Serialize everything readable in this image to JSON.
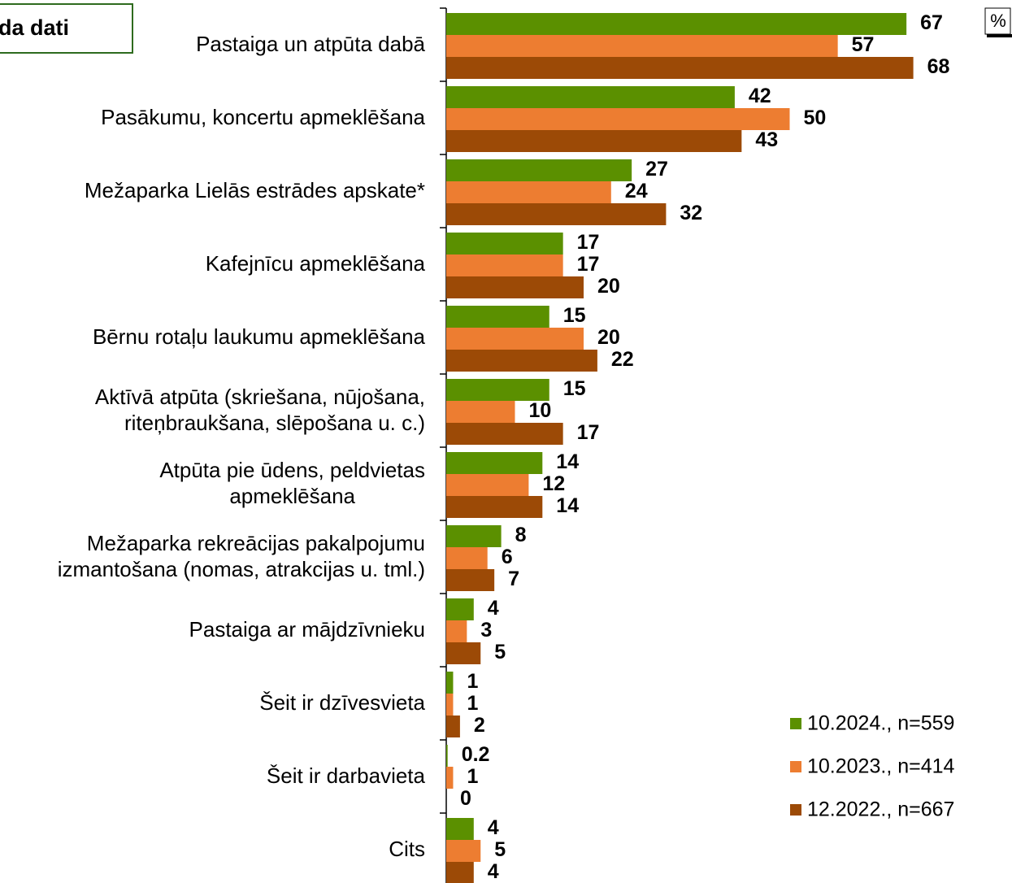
{
  "header": {
    "box_text": "da dati",
    "unit": "%"
  },
  "chart_data": {
    "type": "bar",
    "orientation": "horizontal",
    "categories": [
      [
        "Pastaiga un atpūta dabā"
      ],
      [
        "Pasākumu, koncertu apmeklēšana"
      ],
      [
        "Mežaparka Lielās estrādes apskate*"
      ],
      [
        "Kafejnīcu apmeklēšana"
      ],
      [
        "Bērnu rotaļu laukumu apmeklēšana"
      ],
      [
        "Aktīvā atpūta (skriešana, nūjošana,",
        "riteņbraukšana, slēpošana u. c.)"
      ],
      [
        "Atpūta pie ūdens, peldvietas",
        "apmeklēšana"
      ],
      [
        "Mežaparka rekreācijas pakalpojumu",
        "izmantošana (nomas, atrakcijas u. tml.)"
      ],
      [
        "Pastaiga ar mājdzīvnieku"
      ],
      [
        "Šeit ir dzīvesvieta"
      ],
      [
        "Šeit ir darbavieta"
      ],
      [
        "Cits"
      ]
    ],
    "series": [
      {
        "name": "10.2024., n=559",
        "color": "#5b9000",
        "values": [
          67,
          42,
          27,
          17,
          15,
          15,
          14,
          8,
          4,
          1,
          0.2,
          4
        ]
      },
      {
        "name": "10.2023., n=414",
        "color": "#ed7d31",
        "values": [
          57,
          50,
          24,
          17,
          20,
          10,
          12,
          6,
          3,
          1,
          1,
          5
        ]
      },
      {
        "name": "12.2022., n=667",
        "color": "#9c4a06",
        "values": [
          68,
          43,
          32,
          20,
          22,
          17,
          14,
          7,
          5,
          2,
          0,
          4
        ]
      }
    ],
    "xlim": [
      0,
      80
    ]
  }
}
